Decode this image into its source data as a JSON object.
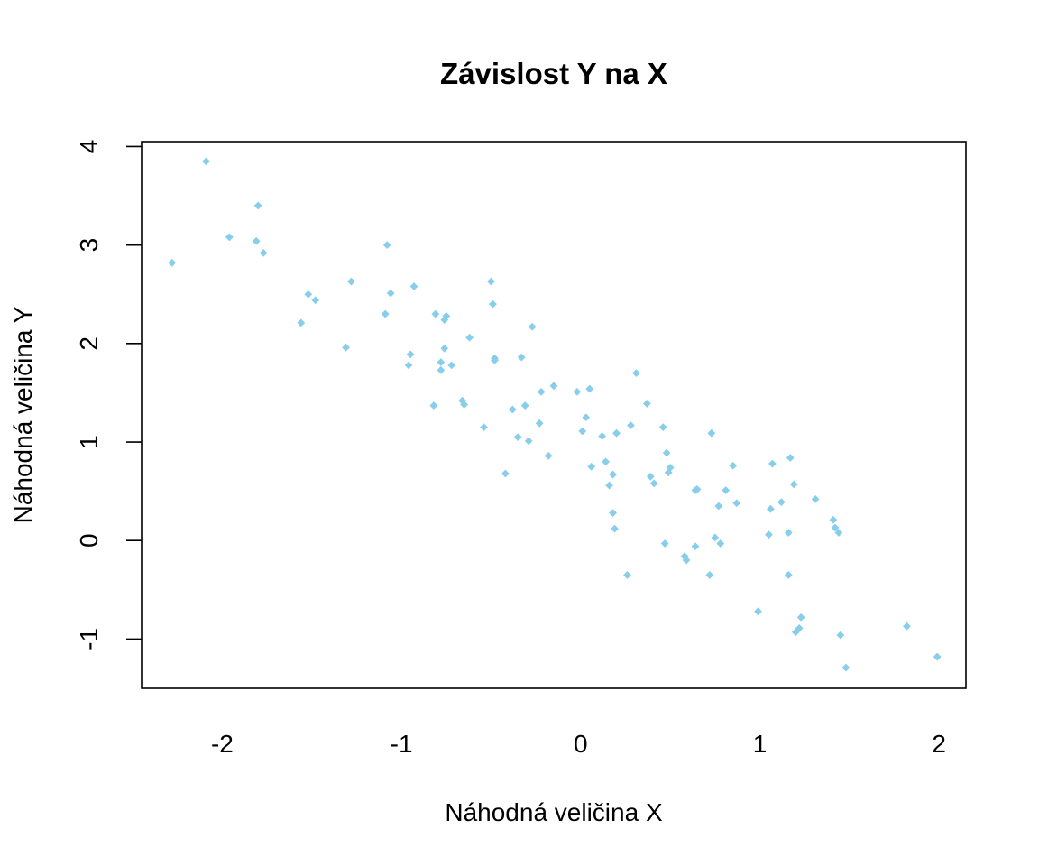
{
  "chart_data": {
    "type": "scatter",
    "title": "Závislost Y na X",
    "xlabel": "Náhodná veličina X",
    "ylabel": "Náhodná veličina Y",
    "xlim": [
      -2.45,
      2.15
    ],
    "ylim": [
      -1.5,
      4.05
    ],
    "x_ticks": [
      -2,
      -1,
      0,
      1,
      2
    ],
    "y_ticks": [
      -1,
      0,
      1,
      2,
      3,
      4
    ],
    "x_tick_labels": [
      "-2",
      "-1",
      "0",
      "1",
      "2"
    ],
    "y_tick_labels": [
      "-1",
      "0",
      "1",
      "2",
      "3",
      "4"
    ],
    "point_color": "#87CEEB",
    "marker": "diamond",
    "grid": false,
    "legend": "none",
    "points": [
      [
        -2.28,
        2.82
      ],
      [
        -2.09,
        3.85
      ],
      [
        -1.96,
        3.08
      ],
      [
        -1.81,
        3.04
      ],
      [
        -1.8,
        3.4
      ],
      [
        -1.77,
        2.92
      ],
      [
        -1.56,
        2.21
      ],
      [
        -1.52,
        2.5
      ],
      [
        -1.48,
        2.44
      ],
      [
        -1.31,
        1.96
      ],
      [
        -1.28,
        2.63
      ],
      [
        -1.09,
        2.3
      ],
      [
        -1.08,
        3.0
      ],
      [
        -1.06,
        2.51
      ],
      [
        -0.96,
        1.78
      ],
      [
        -0.95,
        1.89
      ],
      [
        -0.93,
        2.58
      ],
      [
        -0.82,
        1.37
      ],
      [
        -0.81,
        2.3
      ],
      [
        -0.78,
        1.81
      ],
      [
        -0.78,
        1.73
      ],
      [
        -0.76,
        1.95
      ],
      [
        -0.76,
        2.24
      ],
      [
        -0.75,
        2.28
      ],
      [
        -0.72,
        1.78
      ],
      [
        -0.66,
        1.42
      ],
      [
        -0.65,
        1.38
      ],
      [
        -0.62,
        2.06
      ],
      [
        -0.54,
        1.15
      ],
      [
        -0.5,
        2.63
      ],
      [
        -0.49,
        2.4
      ],
      [
        -0.48,
        1.83
      ],
      [
        -0.48,
        1.85
      ],
      [
        -0.42,
        0.68
      ],
      [
        -0.38,
        1.33
      ],
      [
        -0.35,
        1.05
      ],
      [
        -0.33,
        1.86
      ],
      [
        -0.31,
        1.37
      ],
      [
        -0.29,
        1.01
      ],
      [
        -0.27,
        2.17
      ],
      [
        -0.23,
        1.19
      ],
      [
        -0.22,
        1.51
      ],
      [
        -0.18,
        0.86
      ],
      [
        -0.15,
        1.57
      ],
      [
        -0.02,
        1.51
      ],
      [
        0.01,
        1.11
      ],
      [
        0.03,
        1.25
      ],
      [
        0.05,
        1.54
      ],
      [
        0.06,
        0.75
      ],
      [
        0.12,
        1.06
      ],
      [
        0.14,
        0.8
      ],
      [
        0.16,
        0.56
      ],
      [
        0.18,
        0.67
      ],
      [
        0.18,
        0.28
      ],
      [
        0.19,
        0.12
      ],
      [
        0.2,
        1.09
      ],
      [
        0.26,
        -0.35
      ],
      [
        0.28,
        1.17
      ],
      [
        0.31,
        1.7
      ],
      [
        0.37,
        1.39
      ],
      [
        0.39,
        0.65
      ],
      [
        0.41,
        0.58
      ],
      [
        0.46,
        1.15
      ],
      [
        0.47,
        -0.03
      ],
      [
        0.48,
        0.89
      ],
      [
        0.49,
        0.69
      ],
      [
        0.5,
        0.74
      ],
      [
        0.58,
        -0.16
      ],
      [
        0.59,
        -0.2
      ],
      [
        0.64,
        -0.06
      ],
      [
        0.64,
        0.51
      ],
      [
        0.65,
        0.52
      ],
      [
        0.72,
        -0.35
      ],
      [
        0.73,
        1.09
      ],
      [
        0.75,
        0.03
      ],
      [
        0.77,
        0.35
      ],
      [
        0.78,
        -0.03
      ],
      [
        0.81,
        0.51
      ],
      [
        0.85,
        0.76
      ],
      [
        0.87,
        0.38
      ],
      [
        0.99,
        -0.72
      ],
      [
        1.05,
        0.06
      ],
      [
        1.06,
        0.32
      ],
      [
        1.07,
        0.78
      ],
      [
        1.12,
        0.39
      ],
      [
        1.16,
        0.08
      ],
      [
        1.16,
        -0.35
      ],
      [
        1.17,
        0.84
      ],
      [
        1.19,
        0.57
      ],
      [
        1.2,
        -0.93
      ],
      [
        1.22,
        -0.89
      ],
      [
        1.23,
        -0.78
      ],
      [
        1.31,
        0.42
      ],
      [
        1.41,
        0.21
      ],
      [
        1.42,
        0.13
      ],
      [
        1.44,
        0.08
      ],
      [
        1.45,
        -0.96
      ],
      [
        1.48,
        -1.29
      ],
      [
        1.82,
        -0.87
      ],
      [
        1.99,
        -1.18
      ]
    ]
  }
}
